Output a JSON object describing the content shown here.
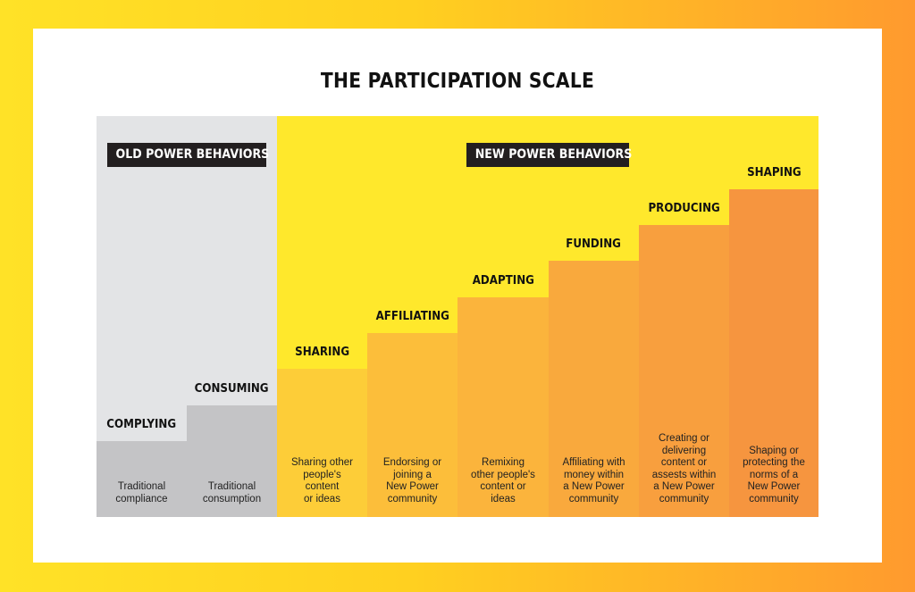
{
  "title": "THE PARTICIPATION SCALE",
  "groups": {
    "old": "OLD POWER BEHAVIORS",
    "new": "NEW POWER BEHAVIORS"
  },
  "steps": [
    {
      "label": "COMPLYING",
      "desc": "Traditional\ncompliance",
      "color": "#c4c4c6"
    },
    {
      "label": "CONSUMING",
      "desc": "Traditional\nconsumption",
      "color": "#c4c4c6"
    },
    {
      "label": "SHARING",
      "desc": "Sharing other\npeople's\ncontent\nor ideas",
      "color": "#fdcd38"
    },
    {
      "label": "AFFILIATING",
      "desc": "Endorsing or\njoining a\nNew Power\ncommunity",
      "color": "#fcbe3a"
    },
    {
      "label": "ADAPTING",
      "desc": "Remixing\nother people's\ncontent or\nideas",
      "color": "#fbb43c"
    },
    {
      "label": "FUNDING",
      "desc": "Affiliating with\nmoney within\na New Power\ncommunity",
      "color": "#f9a93d"
    },
    {
      "label": "PRODUCING",
      "desc": "Creating or\ndelivering\ncontent or\nassests within\na New Power\ncommunity",
      "color": "#f89f3e"
    },
    {
      "label": "SHAPING",
      "desc": "Shaping or\nprotecting the\nnorms of a\nNew Power\ncommunity",
      "color": "#f6953f"
    }
  ]
}
